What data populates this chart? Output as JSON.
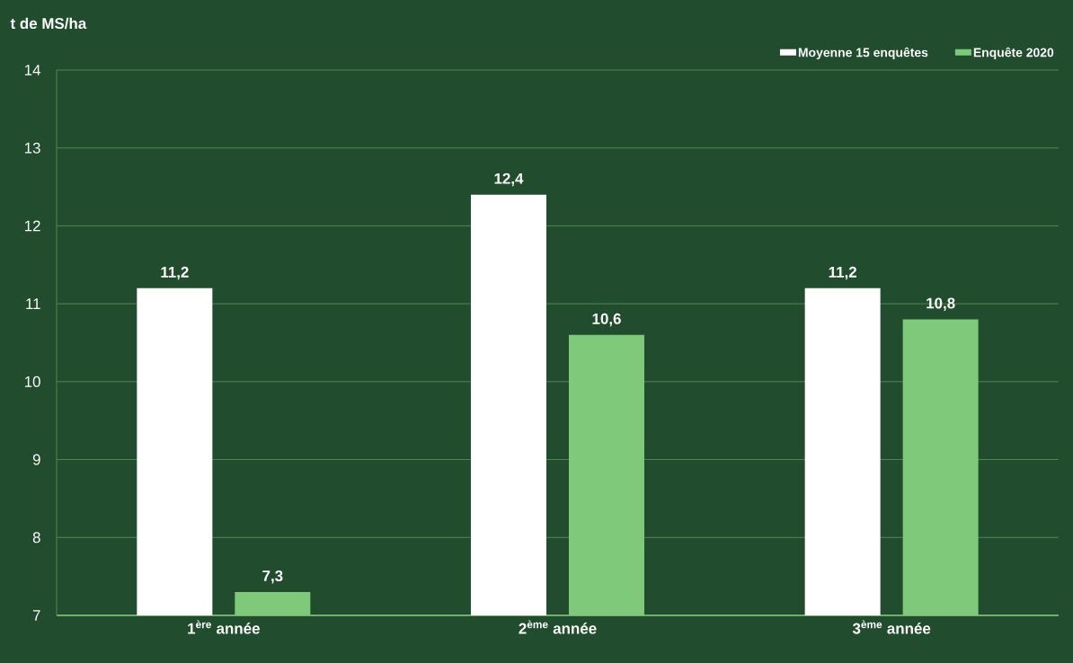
{
  "chart_data": {
    "type": "bar",
    "ylabel": "t de MS/ha",
    "categories": [
      "1$^{ère}$ année",
      "2$^{ème}$ année",
      "3$^{ème}$ année"
    ],
    "series": [
      {
        "name": "Moyenne 15 enquêtes",
        "color": "#ffffff",
        "values": [
          11.2,
          12.4,
          11.2
        ],
        "value_labels": [
          "11,2",
          "12,4",
          "11,2"
        ]
      },
      {
        "name": "Enquête 2020",
        "color": "#7fc97a",
        "values": [
          7.3,
          10.6,
          10.8
        ],
        "value_labels": [
          "7,3",
          "10,6",
          "10,8"
        ]
      }
    ],
    "ylim": [
      7,
      14
    ],
    "yticks": [
      7,
      8,
      9,
      10,
      11,
      12,
      13,
      14
    ],
    "grid": "y",
    "legend": "top right"
  }
}
